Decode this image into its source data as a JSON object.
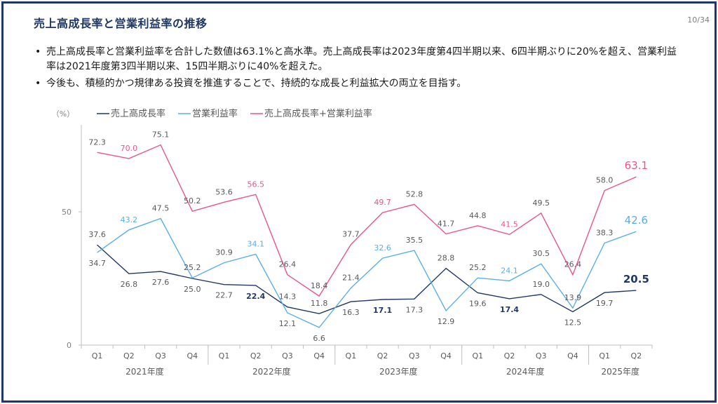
{
  "header": {
    "title": "売上高成長率と営業利益率の推移",
    "page_number": "10/34"
  },
  "bullets": [
    "売上高成長率と営業利益率を合計した数値は63.1%と高水準。売上高成長率は2023年度第4四半期以来、6四半期ぶりに20%を超え、営業利益率は2021年度第3四半期以来、15四半期ぶりに40%を超えた。",
    "今後も、積極的かつ規律ある投資を推進することで、持続的な成長と利益拡大の両立を目指す。"
  ],
  "chart_data": {
    "type": "line",
    "y_unit_label": "（%）",
    "ylim": [
      0,
      80
    ],
    "yticks": [
      0,
      50
    ],
    "categories": [
      "Q1",
      "Q2",
      "Q3",
      "Q4",
      "Q1",
      "Q2",
      "Q3",
      "Q4",
      "Q1",
      "Q2",
      "Q3",
      "Q4",
      "Q1",
      "Q2",
      "Q3",
      "Q4",
      "Q1",
      "Q2"
    ],
    "year_groups": [
      {
        "label": "2021年度",
        "start": 0,
        "end": 3
      },
      {
        "label": "2022年度",
        "start": 4,
        "end": 7
      },
      {
        "label": "2023年度",
        "start": 8,
        "end": 11
      },
      {
        "label": "2024年度",
        "start": 12,
        "end": 15
      },
      {
        "label": "2025年度",
        "start": 16,
        "end": 17
      }
    ],
    "series": [
      {
        "name": "売上高成長率",
        "color": "#203864",
        "values": [
          37.6,
          26.8,
          27.6,
          25.0,
          22.7,
          22.4,
          14.3,
          11.8,
          16.3,
          17.1,
          17.3,
          28.8,
          19.6,
          17.4,
          19.0,
          12.5,
          19.7,
          20.5
        ],
        "label_pos": [
          "above",
          "below",
          "below",
          "below",
          "below",
          "below",
          "above",
          "above",
          "below",
          "below",
          "below",
          "above",
          "below",
          "below",
          "above",
          "below",
          "below",
          "above"
        ]
      },
      {
        "name": "営業利益率",
        "color": "#5aaee8",
        "values": [
          34.7,
          43.2,
          47.5,
          25.2,
          30.9,
          34.1,
          12.1,
          6.6,
          21.4,
          32.6,
          35.5,
          12.9,
          25.2,
          24.1,
          30.5,
          13.9,
          38.3,
          42.6
        ],
        "label_pos": [
          "below",
          "above",
          "above",
          "above",
          "above",
          "above",
          "below",
          "below",
          "above",
          "above",
          "above",
          "below",
          "above",
          "above",
          "above",
          "above",
          "above",
          "above"
        ]
      },
      {
        "name": "売上高成長率+営業利益率",
        "color": "#e8558a",
        "values": [
          72.3,
          70.0,
          75.1,
          50.2,
          53.6,
          56.5,
          26.4,
          18.4,
          37.7,
          49.7,
          52.8,
          41.7,
          44.8,
          41.5,
          49.5,
          26.4,
          58.0,
          63.1
        ],
        "label_pos": [
          "above",
          "above",
          "above",
          "above",
          "above",
          "above",
          "above",
          "above",
          "above",
          "above",
          "above",
          "above",
          "above",
          "above",
          "above",
          "above",
          "above",
          "above"
        ]
      }
    ],
    "highlight_label_colors": {
      "0": [
        "#595959",
        "#595959",
        "#595959",
        "#595959",
        "#595959",
        "#1f3864",
        "#595959",
        "#595959",
        "#595959",
        "#1f3864",
        "#595959",
        "#595959",
        "#595959",
        "#1f3864",
        "#595959",
        "#595959",
        "#595959",
        "#1f3864"
      ],
      "1": [
        "#595959",
        "#5aaee8",
        "#595959",
        "#595959",
        "#595959",
        "#5aaee8",
        "#595959",
        "#595959",
        "#595959",
        "#5aaee8",
        "#595959",
        "#595959",
        "#595959",
        "#5aaee8",
        "#595959",
        "#595959",
        "#595959",
        "#5aaee8"
      ],
      "2": [
        "#595959",
        "#e8558a",
        "#595959",
        "#595959",
        "#595959",
        "#e8558a",
        "#595959",
        "#595959",
        "#595959",
        "#e8558a",
        "#595959",
        "#595959",
        "#595959",
        "#e8558a",
        "#595959",
        "#595959",
        "#595959",
        "#e8558a"
      ]
    }
  }
}
